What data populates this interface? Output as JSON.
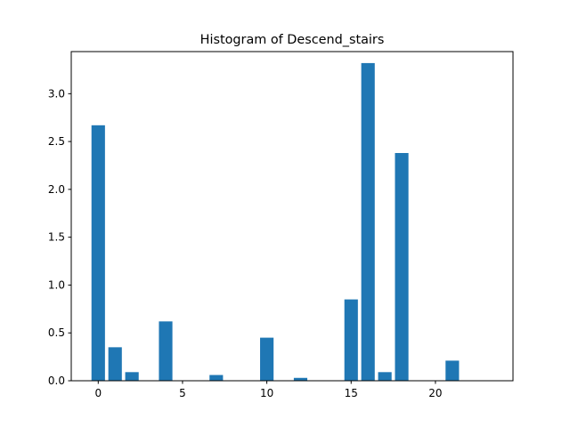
{
  "chart_data": {
    "type": "bar",
    "title": "Histogram of Descend_stairs",
    "xlabel": "",
    "ylabel": "",
    "x": [
      0,
      1,
      2,
      3,
      4,
      5,
      6,
      7,
      8,
      9,
      10,
      11,
      12,
      13,
      14,
      15,
      16,
      17,
      18,
      19,
      20,
      21,
      22,
      23
    ],
    "values": [
      2.67,
      0.35,
      0.09,
      0,
      0.62,
      0,
      0,
      0.06,
      0,
      0,
      0.45,
      0,
      0.03,
      0,
      0,
      0.85,
      3.32,
      0.09,
      2.38,
      0,
      0,
      0.21,
      0,
      0
    ],
    "xlim": [
      -1.6,
      24.6
    ],
    "ylim": [
      0,
      3.44
    ],
    "xticks": [
      0,
      5,
      10,
      15,
      20
    ],
    "xtick_labels": [
      "0",
      "5",
      "10",
      "15",
      "20"
    ],
    "yticks": [
      0.0,
      0.5,
      1.0,
      1.5,
      2.0,
      2.5,
      3.0
    ],
    "ytick_labels": [
      "0.0",
      "0.5",
      "1.0",
      "1.5",
      "2.0",
      "2.5",
      "3.0"
    ],
    "bar_color": "#1f77b4",
    "grid": false
  }
}
